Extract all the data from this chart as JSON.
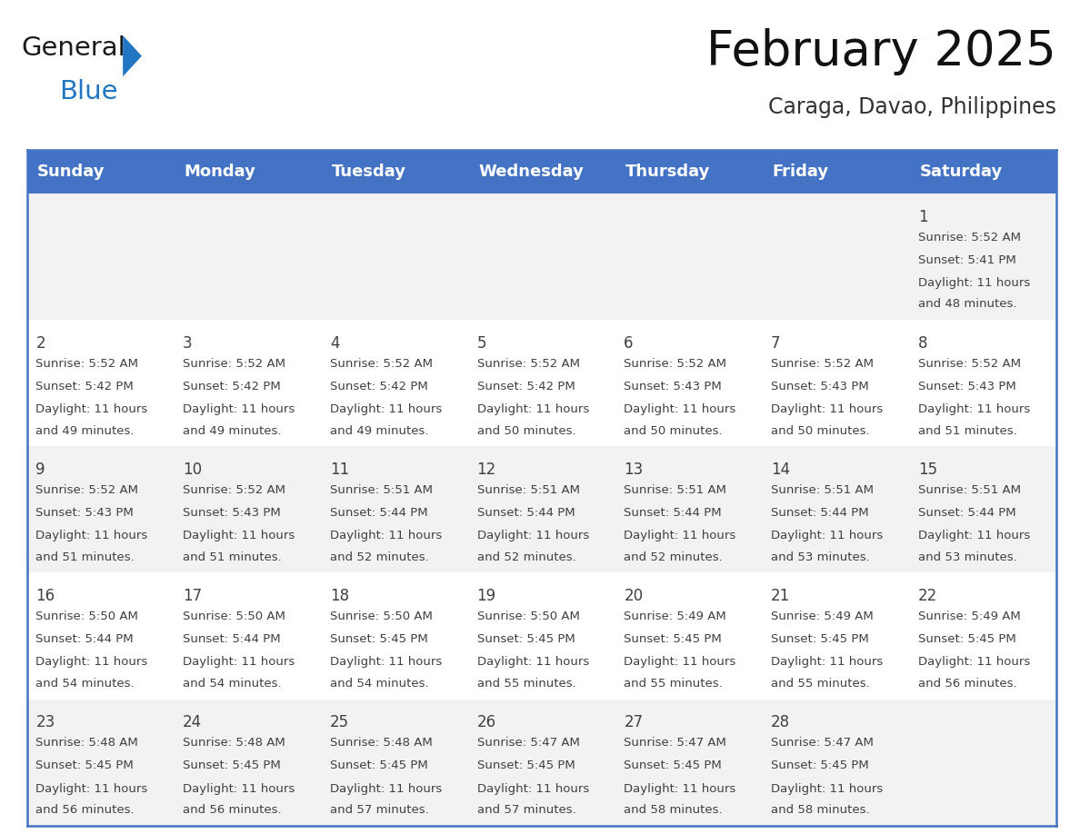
{
  "title": "February 2025",
  "subtitle": "Caraga, Davao, Philippines",
  "days_of_week": [
    "Sunday",
    "Monday",
    "Tuesday",
    "Wednesday",
    "Thursday",
    "Friday",
    "Saturday"
  ],
  "header_bg": "#4472C4",
  "header_text": "#FFFFFF",
  "cell_bg_odd": "#F2F2F2",
  "cell_bg_even": "#FFFFFF",
  "cell_text": "#404040",
  "border_color": "#4472C4",
  "calendar_data": [
    [
      null,
      null,
      null,
      null,
      null,
      null,
      {
        "day": "1",
        "sunrise": "5:52 AM",
        "sunset": "5:41 PM",
        "daylight": "11 hours",
        "daylight2": "and 48 minutes."
      }
    ],
    [
      {
        "day": "2",
        "sunrise": "5:52 AM",
        "sunset": "5:42 PM",
        "daylight": "11 hours",
        "daylight2": "and 49 minutes."
      },
      {
        "day": "3",
        "sunrise": "5:52 AM",
        "sunset": "5:42 PM",
        "daylight": "11 hours",
        "daylight2": "and 49 minutes."
      },
      {
        "day": "4",
        "sunrise": "5:52 AM",
        "sunset": "5:42 PM",
        "daylight": "11 hours",
        "daylight2": "and 49 minutes."
      },
      {
        "day": "5",
        "sunrise": "5:52 AM",
        "sunset": "5:42 PM",
        "daylight": "11 hours",
        "daylight2": "and 50 minutes."
      },
      {
        "day": "6",
        "sunrise": "5:52 AM",
        "sunset": "5:43 PM",
        "daylight": "11 hours",
        "daylight2": "and 50 minutes."
      },
      {
        "day": "7",
        "sunrise": "5:52 AM",
        "sunset": "5:43 PM",
        "daylight": "11 hours",
        "daylight2": "and 50 minutes."
      },
      {
        "day": "8",
        "sunrise": "5:52 AM",
        "sunset": "5:43 PM",
        "daylight": "11 hours",
        "daylight2": "and 51 minutes."
      }
    ],
    [
      {
        "day": "9",
        "sunrise": "5:52 AM",
        "sunset": "5:43 PM",
        "daylight": "11 hours",
        "daylight2": "and 51 minutes."
      },
      {
        "day": "10",
        "sunrise": "5:52 AM",
        "sunset": "5:43 PM",
        "daylight": "11 hours",
        "daylight2": "and 51 minutes."
      },
      {
        "day": "11",
        "sunrise": "5:51 AM",
        "sunset": "5:44 PM",
        "daylight": "11 hours",
        "daylight2": "and 52 minutes."
      },
      {
        "day": "12",
        "sunrise": "5:51 AM",
        "sunset": "5:44 PM",
        "daylight": "11 hours",
        "daylight2": "and 52 minutes."
      },
      {
        "day": "13",
        "sunrise": "5:51 AM",
        "sunset": "5:44 PM",
        "daylight": "11 hours",
        "daylight2": "and 52 minutes."
      },
      {
        "day": "14",
        "sunrise": "5:51 AM",
        "sunset": "5:44 PM",
        "daylight": "11 hours",
        "daylight2": "and 53 minutes."
      },
      {
        "day": "15",
        "sunrise": "5:51 AM",
        "sunset": "5:44 PM",
        "daylight": "11 hours",
        "daylight2": "and 53 minutes."
      }
    ],
    [
      {
        "day": "16",
        "sunrise": "5:50 AM",
        "sunset": "5:44 PM",
        "daylight": "11 hours",
        "daylight2": "and 54 minutes."
      },
      {
        "day": "17",
        "sunrise": "5:50 AM",
        "sunset": "5:44 PM",
        "daylight": "11 hours",
        "daylight2": "and 54 minutes."
      },
      {
        "day": "18",
        "sunrise": "5:50 AM",
        "sunset": "5:45 PM",
        "daylight": "11 hours",
        "daylight2": "and 54 minutes."
      },
      {
        "day": "19",
        "sunrise": "5:50 AM",
        "sunset": "5:45 PM",
        "daylight": "11 hours",
        "daylight2": "and 55 minutes."
      },
      {
        "day": "20",
        "sunrise": "5:49 AM",
        "sunset": "5:45 PM",
        "daylight": "11 hours",
        "daylight2": "and 55 minutes."
      },
      {
        "day": "21",
        "sunrise": "5:49 AM",
        "sunset": "5:45 PM",
        "daylight": "11 hours",
        "daylight2": "and 55 minutes."
      },
      {
        "day": "22",
        "sunrise": "5:49 AM",
        "sunset": "5:45 PM",
        "daylight": "11 hours",
        "daylight2": "and 56 minutes."
      }
    ],
    [
      {
        "day": "23",
        "sunrise": "5:48 AM",
        "sunset": "5:45 PM",
        "daylight": "11 hours",
        "daylight2": "and 56 minutes."
      },
      {
        "day": "24",
        "sunrise": "5:48 AM",
        "sunset": "5:45 PM",
        "daylight": "11 hours",
        "daylight2": "and 56 minutes."
      },
      {
        "day": "25",
        "sunrise": "5:48 AM",
        "sunset": "5:45 PM",
        "daylight": "11 hours",
        "daylight2": "and 57 minutes."
      },
      {
        "day": "26",
        "sunrise": "5:47 AM",
        "sunset": "5:45 PM",
        "daylight": "11 hours",
        "daylight2": "and 57 minutes."
      },
      {
        "day": "27",
        "sunrise": "5:47 AM",
        "sunset": "5:45 PM",
        "daylight": "11 hours",
        "daylight2": "and 58 minutes."
      },
      {
        "day": "28",
        "sunrise": "5:47 AM",
        "sunset": "5:45 PM",
        "daylight": "11 hours",
        "daylight2": "and 58 minutes."
      },
      null
    ]
  ],
  "logo_triangle_color": "#2176C2",
  "logo_general_color": "#1A1A1A",
  "logo_blue_color": "#2176C2",
  "title_fontsize": 38,
  "subtitle_fontsize": 17,
  "header_fontsize": 13,
  "day_num_fontsize": 12,
  "cell_text_fontsize": 9.5
}
